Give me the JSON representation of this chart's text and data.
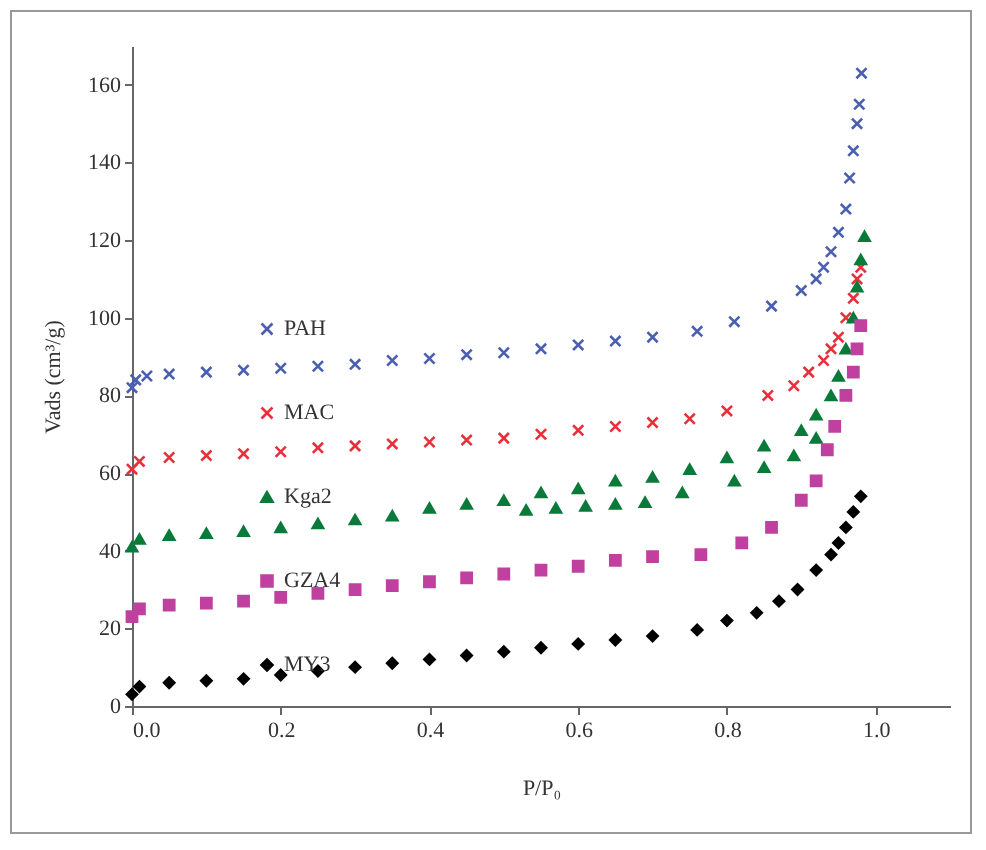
{
  "chart_data": {
    "type": "scatter",
    "xlabel": "P/P₀",
    "ylabel": "Vads (cm³/g)",
    "xlim": [
      0,
      1.1
    ],
    "ylim": [
      0,
      170
    ],
    "xticks": [
      {
        "value": 0,
        "label": "0.0"
      },
      {
        "value": 0.2,
        "label": "0.2"
      },
      {
        "value": 0.4,
        "label": "0.4"
      },
      {
        "value": 0.6,
        "label": "0.6"
      },
      {
        "value": 0.8,
        "label": "0.8"
      },
      {
        "value": 1,
        "label": "1.0"
      }
    ],
    "yticks": [
      0,
      20,
      40,
      60,
      80,
      100,
      120,
      140,
      160
    ],
    "grid": false,
    "legend": "left",
    "series": [
      {
        "name": "PAH",
        "color": "#4a5fb0",
        "marker": "cross",
        "x": [
          0,
          0.005,
          0.02,
          0.05,
          0.1,
          0.15,
          0.2,
          0.25,
          0.3,
          0.35,
          0.4,
          0.45,
          0.5,
          0.55,
          0.6,
          0.65,
          0.7,
          0.76,
          0.81,
          0.86,
          0.9,
          0.92,
          0.93,
          0.94,
          0.95,
          0.96,
          0.965,
          0.97,
          0.975,
          0.978,
          0.981
        ],
        "values": [
          82,
          84,
          85,
          85.5,
          86,
          86.5,
          87,
          87.5,
          88,
          89,
          89.5,
          90.5,
          91,
          92,
          93,
          94,
          95,
          96.5,
          99,
          103,
          107,
          110,
          113,
          117,
          122,
          128,
          136,
          143,
          150,
          155,
          163
        ]
      },
      {
        "name": "MAC",
        "color": "#e8303a",
        "marker": "cross",
        "x": [
          0,
          0.01,
          0.05,
          0.1,
          0.15,
          0.2,
          0.25,
          0.3,
          0.35,
          0.4,
          0.45,
          0.5,
          0.55,
          0.6,
          0.65,
          0.7,
          0.75,
          0.8,
          0.855,
          0.89,
          0.91,
          0.93,
          0.94,
          0.95,
          0.96,
          0.97,
          0.975,
          0.98
        ],
        "values": [
          61,
          63,
          64,
          64.5,
          65,
          65.5,
          66.5,
          67,
          67.5,
          68,
          68.5,
          69,
          70,
          71,
          72,
          73,
          74,
          76,
          80,
          82.5,
          86,
          89,
          92,
          95,
          100,
          105,
          110,
          113
        ]
      },
      {
        "name": "Kga2",
        "color": "#0a7a3a",
        "marker": "triangle",
        "x": [
          0,
          0.01,
          0.05,
          0.1,
          0.15,
          0.2,
          0.25,
          0.3,
          0.35,
          0.4,
          0.45,
          0.5,
          0.53,
          0.55,
          0.57,
          0.6,
          0.61,
          0.65,
          0.65,
          0.69,
          0.7,
          0.74,
          0.75,
          0.8,
          0.81,
          0.85,
          0.85,
          0.89,
          0.9,
          0.92,
          0.92,
          0.94,
          0.95,
          0.96,
          0.97,
          0.975,
          0.98,
          0.985
        ],
        "values": [
          41,
          43,
          44,
          44.5,
          45,
          46,
          47,
          48,
          49,
          51,
          52,
          53,
          50.5,
          55,
          51,
          56,
          51.5,
          58,
          52,
          52.5,
          59,
          55,
          61,
          64,
          58,
          67,
          61.5,
          64.5,
          71,
          75,
          69,
          80,
          85,
          92,
          100,
          108,
          115,
          121
        ]
      },
      {
        "name": "GZA4",
        "color": "#c040a0",
        "marker": "square",
        "x": [
          0,
          0.01,
          0.05,
          0.1,
          0.15,
          0.2,
          0.25,
          0.3,
          0.35,
          0.4,
          0.45,
          0.5,
          0.55,
          0.6,
          0.65,
          0.7,
          0.765,
          0.82,
          0.86,
          0.9,
          0.92,
          0.935,
          0.945,
          0.96,
          0.97,
          0.975,
          0.98
        ],
        "values": [
          23,
          25,
          26,
          26.5,
          27,
          28,
          29,
          30,
          31,
          32,
          33,
          34,
          35,
          36,
          37.5,
          38.5,
          39,
          42,
          46,
          53,
          58,
          66,
          72,
          80,
          86,
          92,
          98
        ]
      },
      {
        "name": "MY3",
        "color": "#000000",
        "marker": "diamond",
        "x": [
          0,
          0.01,
          0.05,
          0.1,
          0.15,
          0.2,
          0.25,
          0.3,
          0.35,
          0.4,
          0.45,
          0.5,
          0.55,
          0.6,
          0.65,
          0.7,
          0.76,
          0.8,
          0.84,
          0.87,
          0.895,
          0.92,
          0.94,
          0.95,
          0.96,
          0.97,
          0.98
        ],
        "values": [
          3,
          5,
          6,
          6.5,
          7,
          8,
          9,
          10,
          11,
          12,
          13,
          14,
          15,
          16,
          17,
          18,
          19.6,
          22,
          24,
          27,
          30,
          35,
          39,
          42,
          46,
          50,
          54
        ]
      }
    ]
  }
}
